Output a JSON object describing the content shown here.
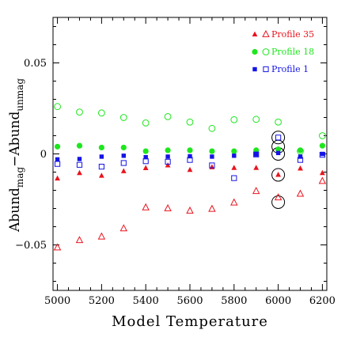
{
  "chart_data": {
    "type": "scatter",
    "xlabel": "Model Temperature",
    "ylabel": {
      "main": "Abund",
      "sub1": "mag",
      "mid": "−Abund",
      "sub2": "unmag"
    },
    "xlim": [
      4980,
      6220
    ],
    "ylim": [
      -0.075,
      0.075
    ],
    "xticks": [
      5000,
      5200,
      5400,
      5600,
      5800,
      6000,
      6200
    ],
    "xtick_labels": [
      "5000",
      "5200",
      "5400",
      "5600",
      "5800",
      "6000",
      "6200"
    ],
    "yticks": [
      -0.05,
      0,
      0.05
    ],
    "ytick_labels": [
      "−0.05",
      "0",
      "0.05"
    ],
    "legend_position": "top-right",
    "legend": [
      {
        "label": "Profile 35",
        "color": "#e8141e",
        "filled_marker": "triangle",
        "open_marker": "triangle"
      },
      {
        "label": "Profile 18",
        "color": "#1ee61e",
        "filled_marker": "circle",
        "open_marker": "circle"
      },
      {
        "label": "Profile 1",
        "color": "#1414e6",
        "filled_marker": "square",
        "open_marker": "square"
      }
    ],
    "series": [
      {
        "name": "Profile 35",
        "marker": "triangle",
        "fill": true,
        "color": "#e8141e",
        "x": [
          5000,
          5100,
          5200,
          5300,
          5400,
          5500,
          5600,
          5700,
          5800,
          5900,
          6000,
          6100,
          6200
        ],
        "y": [
          -0.0135,
          -0.0105,
          -0.012,
          -0.0095,
          -0.0078,
          -0.0063,
          -0.0088,
          -0.0073,
          -0.0077,
          -0.0077,
          -0.0115,
          -0.008,
          -0.0105
        ]
      },
      {
        "name": "Profile 35",
        "marker": "triangle",
        "fill": false,
        "color": "#e8141e",
        "x": [
          5000,
          5100,
          5200,
          5300,
          5400,
          5500,
          5600,
          5700,
          5800,
          5900,
          6000,
          6100,
          6200
        ],
        "y": [
          -0.0515,
          -0.0475,
          -0.0455,
          -0.041,
          -0.0295,
          -0.03,
          -0.0313,
          -0.0303,
          -0.0268,
          -0.0205,
          -0.024,
          -0.022,
          -0.015
        ]
      },
      {
        "name": "Profile 18",
        "marker": "circle",
        "fill": true,
        "color": "#1ee61e",
        "x": [
          5000,
          5100,
          5200,
          5300,
          5400,
          5500,
          5600,
          5700,
          5800,
          5900,
          6000,
          6100,
          6200
        ],
        "y": [
          0.004,
          0.0045,
          0.0035,
          0.0035,
          0.0015,
          0.002,
          0.002,
          0.0015,
          0.0015,
          0.002,
          0.0025,
          0.002,
          0.0045
        ]
      },
      {
        "name": "Profile 18",
        "marker": "circle",
        "fill": false,
        "color": "#1ee61e",
        "x": [
          5000,
          5100,
          5200,
          5300,
          5400,
          5500,
          5600,
          5700,
          5800,
          5900,
          6000,
          6100,
          6200
        ],
        "y": [
          0.026,
          0.023,
          0.0225,
          0.02,
          0.017,
          0.0205,
          0.0175,
          0.014,
          0.0188,
          0.019,
          0.0175,
          0.0015,
          0.01
        ]
      },
      {
        "name": "Profile 1",
        "marker": "square",
        "fill": true,
        "color": "#1414e6",
        "x": [
          5000,
          5100,
          5200,
          5300,
          5400,
          5500,
          5600,
          5700,
          5800,
          5900,
          6000,
          6100,
          6200
        ],
        "y": [
          -0.003,
          -0.0028,
          -0.0015,
          -0.001,
          -0.0018,
          -0.0015,
          -0.0013,
          -0.0015,
          -0.001,
          -0.0003,
          0.0005,
          -0.0015,
          0.0
        ]
      },
      {
        "name": "Profile 1",
        "marker": "square",
        "fill": false,
        "color": "#1414e6",
        "x": [
          5000,
          5100,
          5200,
          5300,
          5400,
          5500,
          5600,
          5700,
          5800,
          5900,
          6000,
          6100,
          6200
        ],
        "y": [
          -0.0055,
          -0.006,
          -0.007,
          -0.005,
          -0.004,
          -0.0043,
          -0.0033,
          -0.0063,
          -0.0133,
          -0.0003,
          0.009,
          -0.0033,
          -0.0005
        ]
      }
    ],
    "annotations": {
      "type": "circle",
      "color": "#000000",
      "points": [
        {
          "x": 6000,
          "y": 0.009
        },
        {
          "x": 6000,
          "y": 0.004
        },
        {
          "x": 6000,
          "y": 0.0
        },
        {
          "x": 6000,
          "y": -0.0115
        },
        {
          "x": 6000,
          "y": -0.0265
        }
      ]
    }
  }
}
